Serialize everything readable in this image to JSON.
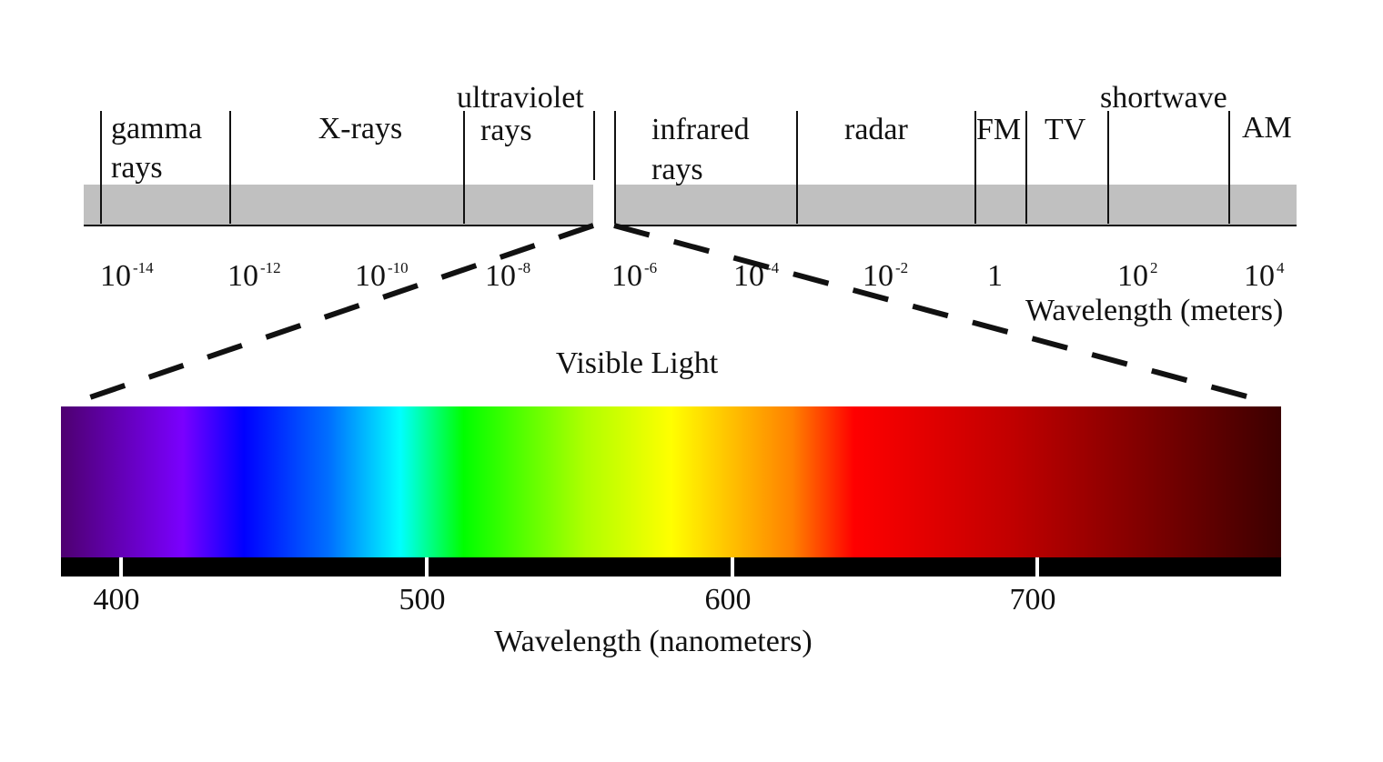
{
  "spectrum": {
    "bands": [
      {
        "lines": [
          "gamma",
          "rays"
        ]
      },
      {
        "lines": [
          "X-rays"
        ]
      },
      {
        "lines": [
          "ultraviolet",
          "rays"
        ]
      },
      {
        "lines": [
          "infrared",
          "rays"
        ]
      },
      {
        "lines": [
          "radar"
        ]
      },
      {
        "lines": [
          "FM"
        ]
      },
      {
        "lines": [
          "TV"
        ]
      },
      {
        "lines": [
          "shortwave"
        ]
      },
      {
        "lines": [
          "AM"
        ]
      }
    ],
    "ticks": [
      {
        "base": "10",
        "exp": "-14"
      },
      {
        "base": "10",
        "exp": "-12"
      },
      {
        "base": "10",
        "exp": "-10"
      },
      {
        "base": "10",
        "exp": "-8"
      },
      {
        "base": "10",
        "exp": "-6"
      },
      {
        "base": "10",
        "exp": "-4"
      },
      {
        "base": "10",
        "exp": "-2"
      },
      {
        "base": "1"
      },
      {
        "base": "10",
        "exp": "2"
      },
      {
        "base": "10",
        "exp": "4"
      }
    ],
    "axis_label": "Wavelength (meters)"
  },
  "visible": {
    "title": "Visible Light",
    "ticks": [
      "400",
      "500",
      "600",
      "700"
    ],
    "axis_label": "Wavelength (nanometers)"
  }
}
